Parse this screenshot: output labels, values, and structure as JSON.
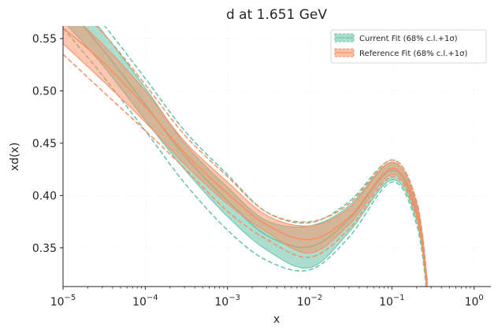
{
  "chart_data": {
    "type": "line",
    "title": "d at 1.651 GeV",
    "xlabel": "x",
    "ylabel": "xd(x)",
    "xscale": "log",
    "xlim": [
      1e-05,
      1.6
    ],
    "ylim": [
      0.313,
      0.562
    ],
    "x_ticks": [
      {
        "value": 1e-05,
        "base": "10",
        "exp": "−5"
      },
      {
        "value": 0.0001,
        "base": "10",
        "exp": "−4"
      },
      {
        "value": 0.001,
        "base": "10",
        "exp": "−3"
      },
      {
        "value": 0.01,
        "base": "10",
        "exp": "−2"
      },
      {
        "value": 0.1,
        "base": "10",
        "exp": "−1"
      },
      {
        "value": 1,
        "base": "10",
        "exp": "0"
      }
    ],
    "y_ticks": [
      {
        "value": 0.35,
        "label": "0.35"
      },
      {
        "value": 0.4,
        "label": "0.40"
      },
      {
        "value": 0.45,
        "label": "0.45"
      },
      {
        "value": 0.5,
        "label": "0.50"
      },
      {
        "value": 0.55,
        "label": "0.55"
      }
    ],
    "grid": true,
    "legend_position": "top-right",
    "x": [
      1e-05,
      3e-05,
      0.0001,
      0.0003,
      0.001,
      0.003,
      0.01,
      0.03,
      0.1,
      0.2,
      0.27
    ],
    "series": [
      {
        "name": "Current Fit (68% c.l.+1σ)",
        "color": "#66c2a5",
        "fill": "#66c2a5",
        "center": [
          0.585,
          0.54,
          0.487,
          0.438,
          0.395,
          0.362,
          0.351,
          0.377,
          0.424,
          0.383,
          0.31
        ],
        "lower": [
          0.567,
          0.525,
          0.472,
          0.425,
          0.38,
          0.348,
          0.331,
          0.365,
          0.415,
          0.376,
          0.305
        ],
        "upper": [
          0.602,
          0.557,
          0.503,
          0.45,
          0.408,
          0.376,
          0.371,
          0.39,
          0.432,
          0.39,
          0.316
        ],
        "outer_lower": [
          0.56,
          0.515,
          0.462,
          0.412,
          0.367,
          0.338,
          0.329,
          0.36,
          0.413,
          0.372,
          0.303
        ],
        "outer_upper": [
          0.61,
          0.565,
          0.512,
          0.462,
          0.42,
          0.384,
          0.374,
          0.394,
          0.434,
          0.394,
          0.318
        ]
      },
      {
        "name": "Reference Fit (68% c.l.+1σ)",
        "color": "#fc8d62",
        "fill": "#fc8d62",
        "center": [
          0.56,
          0.528,
          0.485,
          0.441,
          0.402,
          0.372,
          0.358,
          0.379,
          0.426,
          0.386,
          0.312
        ],
        "lower": [
          0.545,
          0.51,
          0.47,
          0.43,
          0.392,
          0.365,
          0.345,
          0.372,
          0.42,
          0.381,
          0.309
        ],
        "upper": [
          0.58,
          0.545,
          0.5,
          0.452,
          0.413,
          0.381,
          0.371,
          0.388,
          0.432,
          0.391,
          0.315
        ],
        "outer_lower": [
          0.535,
          0.5,
          0.462,
          0.426,
          0.385,
          0.358,
          0.341,
          0.368,
          0.418,
          0.379,
          0.307
        ],
        "outer_upper": [
          0.59,
          0.556,
          0.506,
          0.458,
          0.418,
          0.384,
          0.375,
          0.392,
          0.434,
          0.394,
          0.317
        ]
      }
    ]
  }
}
